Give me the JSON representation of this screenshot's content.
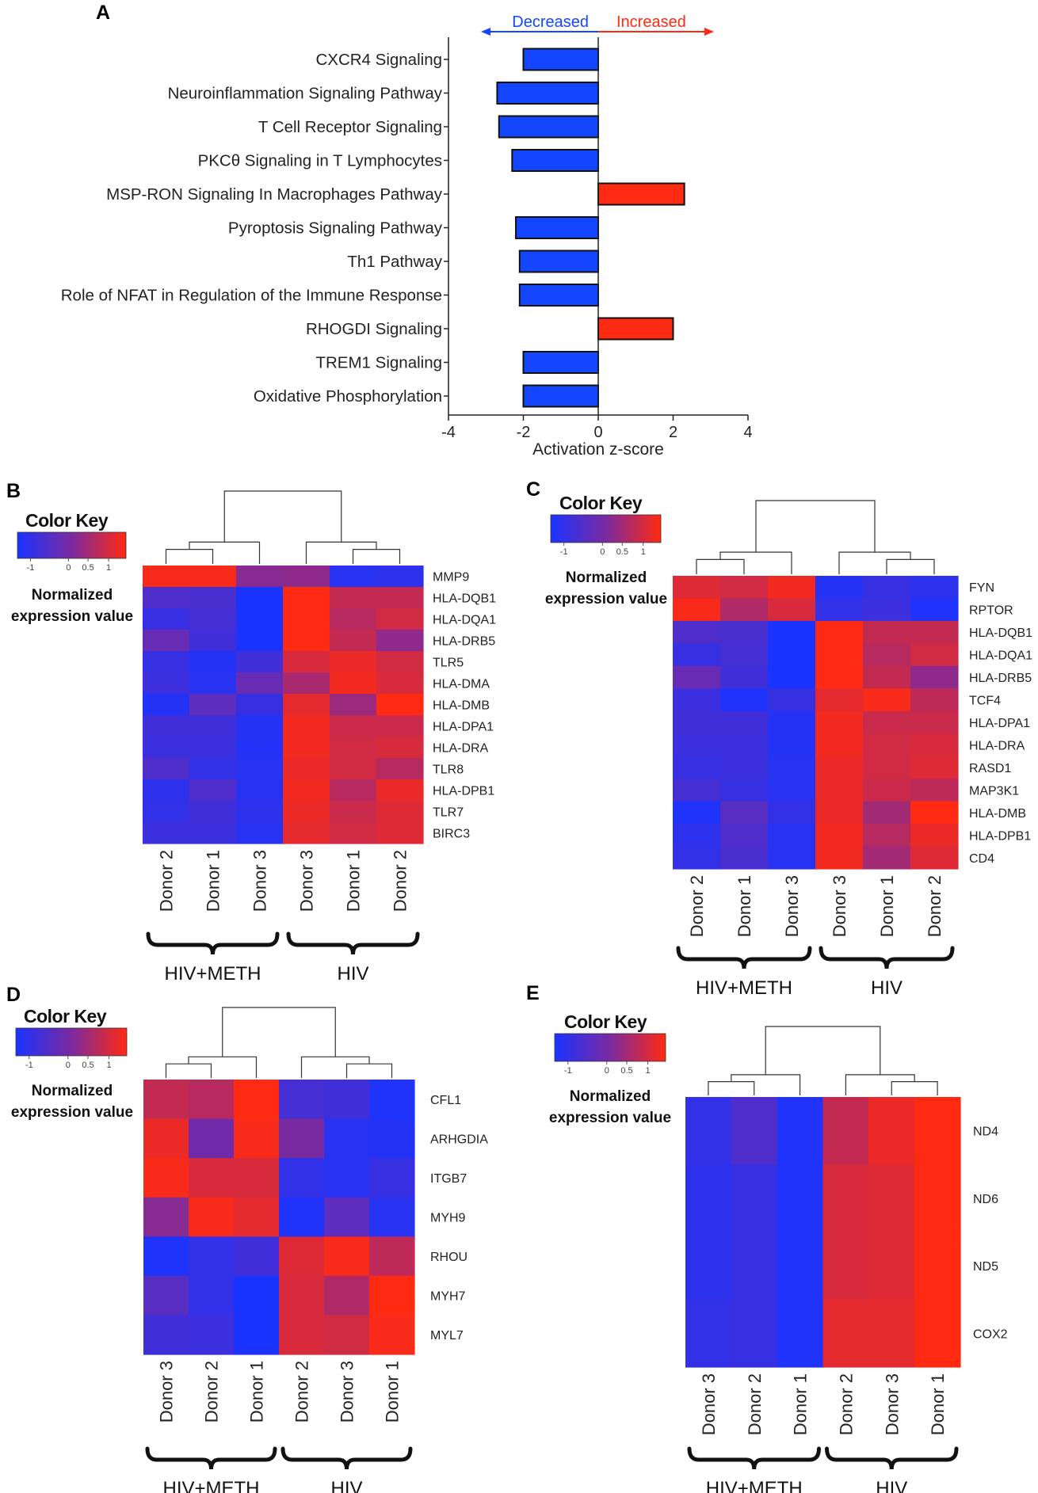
{
  "chart_data": [
    {
      "panel": "A",
      "type": "bar",
      "orientation": "horizontal",
      "direction_labels": {
        "decreased": "Decreased",
        "increased": "Increased"
      },
      "colors": {
        "decreased": "#1446ff",
        "increased": "#ff2a12"
      },
      "categories": [
        "CXCR4 Signaling",
        "Neuroinflammation Signaling Pathway",
        "T Cell Receptor Signaling",
        "PKCθ Signaling in T Lymphocytes",
        "MSP-RON Signaling In Macrophages Pathway",
        "Pyroptosis Signaling Pathway",
        "Th1 Pathway",
        "Role of NFAT in Regulation of the Immune Response",
        "RHOGDI Signaling",
        "TREM1 Signaling",
        "Oxidative Phosphorylation"
      ],
      "values": [
        -2.0,
        -2.7,
        -2.65,
        -2.3,
        2.3,
        -2.2,
        -2.1,
        -2.1,
        2.0,
        -2.0,
        -2.0
      ],
      "xlabel": "Activation z-score",
      "xlim": [
        -4,
        4
      ],
      "xticks": [
        -4,
        -2,
        0,
        2,
        4
      ]
    },
    {
      "panel": "B",
      "type": "heatmap",
      "color_key": {
        "title": "Color Key",
        "label_line1": "Normalized",
        "label_line2": "expression value",
        "ticks": [
          "-1",
          "0",
          "0.5",
          "1"
        ]
      },
      "columns": [
        "Donor 2",
        "Donor 1",
        "Donor 3",
        "Donor 3",
        "Donor 1",
        "Donor 2"
      ],
      "groups": [
        {
          "name": "HIV+METH",
          "span": 3
        },
        {
          "name": "HIV",
          "span": 3
        }
      ],
      "rows": [
        "MMP9",
        "HLA-DQB1",
        "HLA-DQA1",
        "HLA-DRB5",
        "TLR5",
        "HLA-DMA",
        "HLA-DMB",
        "HLA-DPA1",
        "HLA-DRA",
        "TLR8",
        "HLA-DPB1",
        "TLR7",
        "BIRC3"
      ],
      "values": [
        [
          0.95,
          0.95,
          0.1,
          0.15,
          -0.85,
          -0.8
        ],
        [
          -0.45,
          -0.5,
          -1.0,
          1.0,
          0.55,
          0.55
        ],
        [
          -0.7,
          -0.55,
          -1.0,
          1.0,
          0.45,
          0.65
        ],
        [
          -0.2,
          -0.6,
          -1.0,
          1.0,
          0.55,
          0.15
        ],
        [
          -0.7,
          -0.9,
          -0.6,
          0.7,
          0.85,
          0.65
        ],
        [
          -0.65,
          -0.85,
          -0.2,
          0.35,
          0.9,
          0.7
        ],
        [
          -0.9,
          -0.3,
          -0.7,
          0.8,
          0.25,
          1.0
        ],
        [
          -0.6,
          -0.6,
          -0.9,
          0.9,
          0.6,
          0.6
        ],
        [
          -0.65,
          -0.65,
          -0.9,
          0.9,
          0.65,
          0.7
        ],
        [
          -0.45,
          -0.75,
          -0.85,
          0.85,
          0.65,
          0.45
        ],
        [
          -0.8,
          -0.45,
          -0.85,
          0.9,
          0.45,
          0.85
        ],
        [
          -0.75,
          -0.6,
          -0.8,
          0.85,
          0.6,
          0.75
        ],
        [
          -0.65,
          -0.65,
          -0.85,
          0.8,
          0.65,
          0.75
        ]
      ]
    },
    {
      "panel": "C",
      "type": "heatmap",
      "color_key": {
        "title": "Color Key",
        "label_line1": "Normalized",
        "label_line2": "expression value",
        "ticks": [
          "-1",
          "0",
          "0.5",
          "1"
        ]
      },
      "columns": [
        "Donor 2",
        "Donor 1",
        "Donor 3",
        "Donor 3",
        "Donor 1",
        "Donor 2"
      ],
      "groups": [
        {
          "name": "HIV+METH",
          "span": 3
        },
        {
          "name": "HIV",
          "span": 3
        }
      ],
      "rows": [
        "FYN",
        "RPTOR",
        "HLA-DQB1",
        "HLA-DQA1",
        "HLA-DRB5",
        "TCF4",
        "HLA-DPA1",
        "HLA-DRA",
        "RASD1",
        "MAP3K1",
        "HLA-DMB",
        "HLA-DPB1",
        "CD4"
      ],
      "values": [
        [
          0.75,
          0.65,
          0.9,
          -0.9,
          -0.7,
          -0.8
        ],
        [
          0.95,
          0.4,
          0.7,
          -0.75,
          -0.65,
          -0.95
        ],
        [
          -0.45,
          -0.5,
          -1.0,
          1.0,
          0.55,
          0.55
        ],
        [
          -0.7,
          -0.55,
          -1.0,
          1.0,
          0.45,
          0.65
        ],
        [
          -0.2,
          -0.6,
          -1.0,
          1.0,
          0.55,
          0.15
        ],
        [
          -0.65,
          -0.95,
          -0.7,
          0.8,
          0.95,
          0.5
        ],
        [
          -0.6,
          -0.6,
          -0.9,
          0.9,
          0.6,
          0.6
        ],
        [
          -0.65,
          -0.65,
          -0.9,
          0.9,
          0.65,
          0.7
        ],
        [
          -0.7,
          -0.65,
          -0.85,
          0.85,
          0.65,
          0.75
        ],
        [
          -0.55,
          -0.7,
          -0.85,
          0.85,
          0.6,
          0.5
        ],
        [
          -0.95,
          -0.35,
          -0.75,
          0.85,
          0.3,
          1.0
        ],
        [
          -0.8,
          -0.45,
          -0.85,
          0.9,
          0.45,
          0.85
        ],
        [
          -0.75,
          -0.5,
          -0.85,
          0.9,
          0.3,
          0.75
        ]
      ]
    },
    {
      "panel": "D",
      "type": "heatmap",
      "color_key": {
        "title": "Color Key",
        "label_line1": "Normalized",
        "label_line2": "expression value",
        "ticks": [
          "-1",
          "0",
          "0.5",
          "1"
        ]
      },
      "columns": [
        "Donor 3",
        "Donor 2",
        "Donor 1",
        "Donor 2",
        "Donor 3",
        "Donor 1"
      ],
      "groups": [
        {
          "name": "HIV+METH",
          "span": 3
        },
        {
          "name": "HIV",
          "span": 3
        }
      ],
      "rows": [
        "CFL1",
        "ARHGDIA",
        "ITGB7",
        "MYH9",
        "RHOU",
        "MYH7",
        "MYL7"
      ],
      "values": [
        [
          0.55,
          0.45,
          1.0,
          -0.55,
          -0.6,
          -0.95
        ],
        [
          0.85,
          -0.1,
          0.95,
          0.0,
          -0.85,
          -0.9
        ],
        [
          0.95,
          0.7,
          0.7,
          -0.75,
          -0.85,
          -0.7
        ],
        [
          0.1,
          0.95,
          0.8,
          -0.95,
          -0.3,
          -0.85
        ],
        [
          -0.95,
          -0.75,
          -0.6,
          0.75,
          0.95,
          0.5
        ],
        [
          -0.35,
          -0.75,
          -1.0,
          0.7,
          0.4,
          1.0
        ],
        [
          -0.6,
          -0.65,
          -1.0,
          0.7,
          0.65,
          0.95
        ]
      ]
    },
    {
      "panel": "E",
      "type": "heatmap",
      "color_key": {
        "title": "Color Key",
        "label_line1": "Normalized",
        "label_line2": "expression value",
        "ticks": [
          "-1",
          "0",
          "0.5",
          "1"
        ]
      },
      "columns": [
        "Donor 3",
        "Donor 2",
        "Donor 1",
        "Donor 2",
        "Donor 3",
        "Donor 1"
      ],
      "groups": [
        {
          "name": "HIV+METH",
          "span": 3
        },
        {
          "name": "HIV",
          "span": 3
        }
      ],
      "rows": [
        "ND4",
        "ND6",
        "ND5",
        "COX2"
      ],
      "values": [
        [
          -0.75,
          -0.45,
          -0.95,
          0.55,
          0.85,
          1.0
        ],
        [
          -0.8,
          -0.7,
          -0.95,
          0.7,
          0.75,
          1.0
        ],
        [
          -0.8,
          -0.7,
          -0.95,
          0.7,
          0.75,
          1.0
        ],
        [
          -0.75,
          -0.7,
          -0.95,
          0.8,
          0.8,
          1.0
        ]
      ]
    }
  ]
}
